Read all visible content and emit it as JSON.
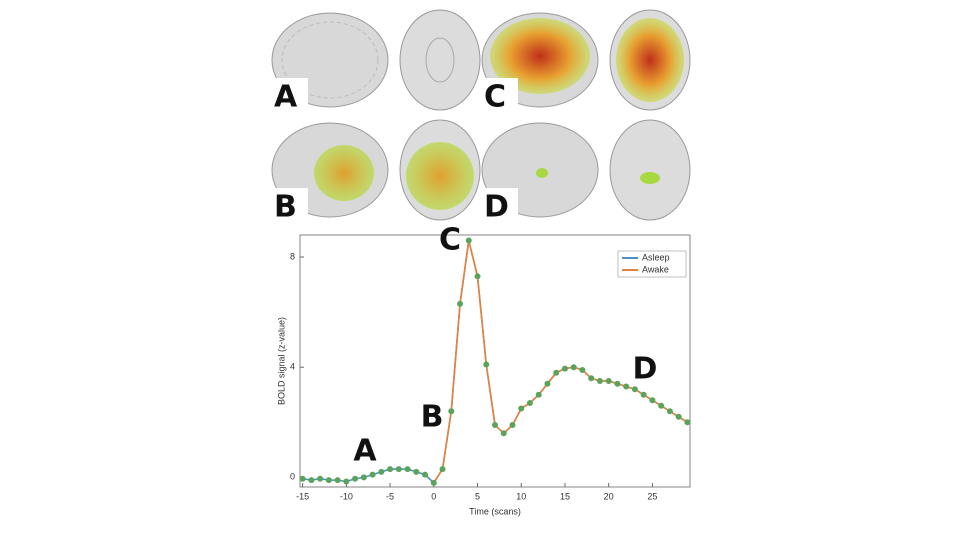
{
  "brain_panels": {
    "labels": [
      "A",
      "C",
      "B",
      "D"
    ]
  },
  "chart_data": {
    "type": "line",
    "x_label": "Time (scans)",
    "y_label": "BOLD signal (z-value)",
    "x": [
      -15,
      -14,
      -13,
      -12,
      -11,
      -10,
      -9,
      -8,
      -7,
      -6,
      -5,
      -4,
      -3,
      -2,
      -1,
      0,
      1,
      2,
      3,
      4,
      5,
      6,
      7,
      8,
      9,
      10,
      11,
      12,
      13,
      14,
      15,
      16,
      17,
      18,
      19,
      20,
      21,
      22,
      23,
      24,
      25,
      26,
      27,
      28,
      29
    ],
    "series": [
      {
        "name": "Asleep",
        "color": "#4a90c8",
        "marker_color": "#5aa35a",
        "values": [
          -0.05,
          -0.1,
          -0.05,
          -0.1,
          -0.1,
          -0.15,
          -0.05,
          0,
          0.1,
          0.2,
          0.3,
          0.3,
          0.3,
          0.2,
          0.1,
          -0.2,
          0.3,
          2.4,
          6.3,
          8.6,
          7.3,
          4.1,
          1.9,
          1.6,
          1.9,
          2.5,
          2.7,
          3.0,
          3.4,
          3.8,
          3.95,
          4.0,
          3.9,
          3.6,
          3.5,
          3.5,
          3.4,
          3.3,
          3.2,
          3.0,
          2.8,
          2.6,
          2.4,
          2.2,
          2.0
        ]
      },
      {
        "name": "Awake",
        "color": "#e8803a",
        "values": [
          null,
          null,
          null,
          null,
          null,
          null,
          null,
          null,
          null,
          null,
          null,
          null,
          null,
          null,
          null,
          -0.2,
          0.3,
          2.4,
          6.3,
          8.6,
          7.3,
          4.1,
          1.9,
          1.6,
          1.9,
          2.5,
          2.7,
          3.0,
          3.4,
          3.8,
          3.95,
          4.0,
          3.9,
          3.6,
          3.5,
          3.5,
          3.4,
          3.3,
          3.2,
          3.0,
          2.8,
          2.6,
          2.4,
          2.2,
          2.0
        ]
      }
    ],
    "annotations": [
      "A",
      "B",
      "C",
      "D"
    ],
    "xlim": [
      -15.3,
      29.3
    ],
    "ylim": [
      -0.35,
      8.8
    ],
    "xticks": [
      -15,
      -10,
      -5,
      0,
      5,
      10,
      15,
      20,
      25
    ],
    "yticks": [
      0,
      4,
      8
    ],
    "legend": "upper right"
  }
}
